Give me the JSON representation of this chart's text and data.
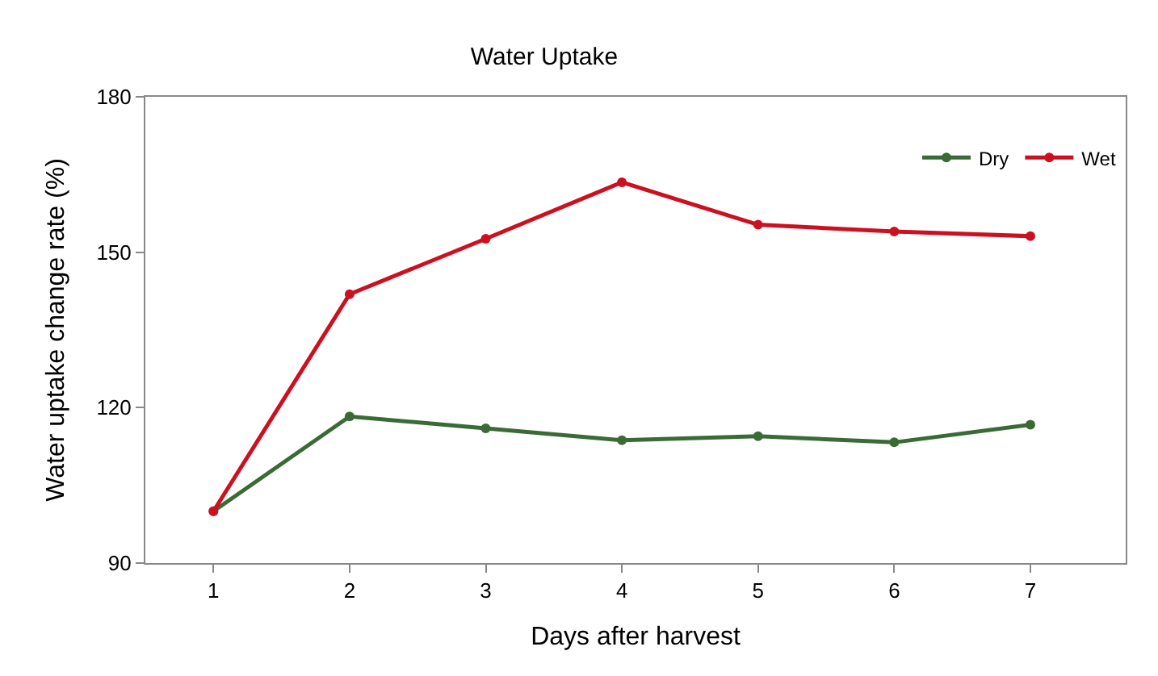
{
  "chart_data": {
    "type": "line",
    "title": "Water Uptake",
    "xlabel": "Days after harvest",
    "ylabel": "Water uptake change rate (%)",
    "categories": [
      "1",
      "2",
      "3",
      "4",
      "5",
      "6",
      "7"
    ],
    "series": [
      {
        "name": "Dry",
        "color": "#3a6b35",
        "values": [
          100,
          118.3,
          116,
          113.7,
          114.5,
          113.3,
          116.7
        ]
      },
      {
        "name": "Wet",
        "color": "#cc1020",
        "values": [
          100,
          141.9,
          152.6,
          163.5,
          155.3,
          154,
          153.1
        ]
      }
    ],
    "ylim": [
      90,
      180
    ],
    "yticks": [
      90,
      120,
      150,
      180
    ],
    "legend": "top right",
    "marker": "circle",
    "line_style": "solid"
  }
}
